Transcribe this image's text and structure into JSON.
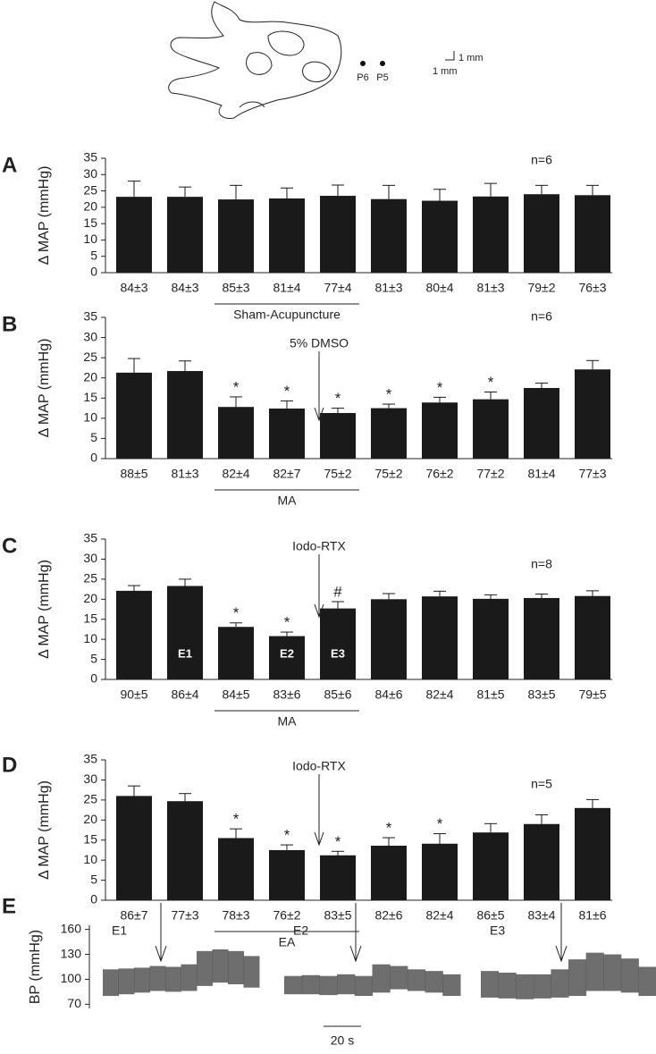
{
  "figure": {
    "points": [
      "P6",
      "P5"
    ],
    "scale": [
      "1 mm",
      "1 mm"
    ]
  },
  "chart_data": [
    {
      "type": "bar",
      "panel": "A",
      "ylabel": "Δ MAP (mmHg)",
      "color": "#1a1a1a",
      "categories": [
        "84±3",
        "84±3",
        "85±3",
        "81±4",
        "77±4",
        "81±3",
        "80±4",
        "81±3",
        "79±2",
        "76±3"
      ],
      "values": [
        23.2,
        23.2,
        22.4,
        22.7,
        23.5,
        22.5,
        22.0,
        23.3,
        24.0,
        23.7
      ],
      "errors": [
        4.8,
        3.0,
        4.3,
        3.2,
        3.3,
        4.2,
        3.5,
        4.0,
        2.7,
        3.0
      ],
      "ylim": [
        0,
        35
      ],
      "yticks": [
        0,
        5,
        10,
        15,
        20,
        25,
        30,
        35
      ],
      "n_label": "n=6",
      "bracket_label": "Sham-Acupuncture"
    },
    {
      "type": "bar",
      "panel": "B",
      "ylabel": "Δ MAP (mmHg)",
      "color": "#1a1a1a",
      "categories": [
        "88±5",
        "81±3",
        "82±4",
        "82±7",
        "75±2",
        "75±2",
        "76±2",
        "77±2",
        "81±4",
        "77±3"
      ],
      "values": [
        21.3,
        21.7,
        12.8,
        12.4,
        11.3,
        12.5,
        13.9,
        14.7,
        17.5,
        22.1
      ],
      "errors": [
        3.5,
        2.5,
        2.5,
        1.9,
        1.2,
        1.0,
        1.3,
        1.8,
        1.2,
        2.2
      ],
      "ylim": [
        0,
        35
      ],
      "yticks": [
        0,
        5,
        10,
        15,
        20,
        25,
        30,
        35
      ],
      "n_label": "n=6",
      "bracket_label": "MA",
      "arrow_label": "5% DMSO",
      "markers": [
        {
          "index": 2,
          "text": "*"
        },
        {
          "index": 3,
          "text": "*"
        },
        {
          "index": 4,
          "text": "*"
        },
        {
          "index": 5,
          "text": "*"
        },
        {
          "index": 6,
          "text": "*"
        },
        {
          "index": 7,
          "text": "*"
        }
      ]
    },
    {
      "type": "bar",
      "panel": "C",
      "ylabel": "Δ MAP (mmHg)",
      "color": "#1a1a1a",
      "categories": [
        "90±5",
        "86±4",
        "84±5",
        "83±6",
        "85±6",
        "84±6",
        "82±4",
        "81±5",
        "83±5",
        "79±5"
      ],
      "values": [
        22.1,
        23.3,
        13.1,
        10.8,
        17.7,
        20.0,
        20.7,
        20.1,
        20.3,
        20.8
      ],
      "errors": [
        1.3,
        1.7,
        1.0,
        1.0,
        1.7,
        1.4,
        1.3,
        1.0,
        1.0,
        1.3
      ],
      "ylim": [
        0,
        35
      ],
      "yticks": [
        0,
        5,
        10,
        15,
        20,
        25,
        30,
        35
      ],
      "n_label": "n=8",
      "bracket_label": "MA",
      "arrow_label": "Iodo-RTX",
      "markers": [
        {
          "index": 2,
          "text": "*"
        },
        {
          "index": 3,
          "text": "*"
        },
        {
          "index": 4,
          "text": "#"
        }
      ],
      "inbar": [
        {
          "index": 1,
          "text": "E1"
        },
        {
          "index": 3,
          "text": "E2"
        },
        {
          "index": 4,
          "text": "E3"
        }
      ]
    },
    {
      "type": "bar",
      "panel": "D",
      "ylabel": "Δ MAP (mmHg)",
      "color": "#1a1a1a",
      "categories": [
        "86±7",
        "77±3",
        "78±3",
        "76±2",
        "83±5",
        "82±6",
        "82±4",
        "86±5",
        "83±4",
        "81±6"
      ],
      "values": [
        26.0,
        24.7,
        15.5,
        12.5,
        11.2,
        13.6,
        14.1,
        16.9,
        19.0,
        23.0
      ],
      "errors": [
        2.5,
        1.9,
        2.3,
        1.3,
        1.0,
        2.0,
        2.5,
        2.2,
        2.3,
        2.1
      ],
      "ylim": [
        0,
        35
      ],
      "yticks": [
        0,
        5,
        10,
        15,
        20,
        25,
        30,
        35
      ],
      "n_label": "n=5",
      "bracket_label": "EA",
      "arrow_label": "Iodo-RTX",
      "markers": [
        {
          "index": 2,
          "text": "*"
        },
        {
          "index": 3,
          "text": "*"
        },
        {
          "index": 4,
          "text": "*"
        },
        {
          "index": 5,
          "text": "*"
        },
        {
          "index": 6,
          "text": "*"
        }
      ]
    },
    {
      "type": "trace",
      "panel": "E",
      "ylabel": "BP (mmHg)",
      "color": "#555555",
      "ylim": [
        65,
        165
      ],
      "yticks": [
        70,
        100,
        130,
        160
      ],
      "scale_label": "20 s",
      "traces": [
        {
          "name": "E1",
          "low": [
            80,
            82,
            84,
            86,
            85,
            86,
            92,
            96,
            94,
            90
          ],
          "high": [
            112,
            113,
            114,
            116,
            115,
            118,
            134,
            136,
            134,
            128
          ]
        },
        {
          "name": "E2",
          "low": [
            82,
            82,
            81,
            82,
            80,
            84,
            88,
            86,
            84,
            80
          ],
          "high": [
            104,
            105,
            104,
            106,
            104,
            118,
            116,
            112,
            110,
            106
          ]
        },
        {
          "name": "E3",
          "low": [
            78,
            77,
            76,
            77,
            78,
            80,
            86,
            86,
            84,
            80
          ],
          "high": [
            110,
            108,
            106,
            106,
            112,
            124,
            132,
            130,
            125,
            115
          ]
        }
      ]
    }
  ]
}
